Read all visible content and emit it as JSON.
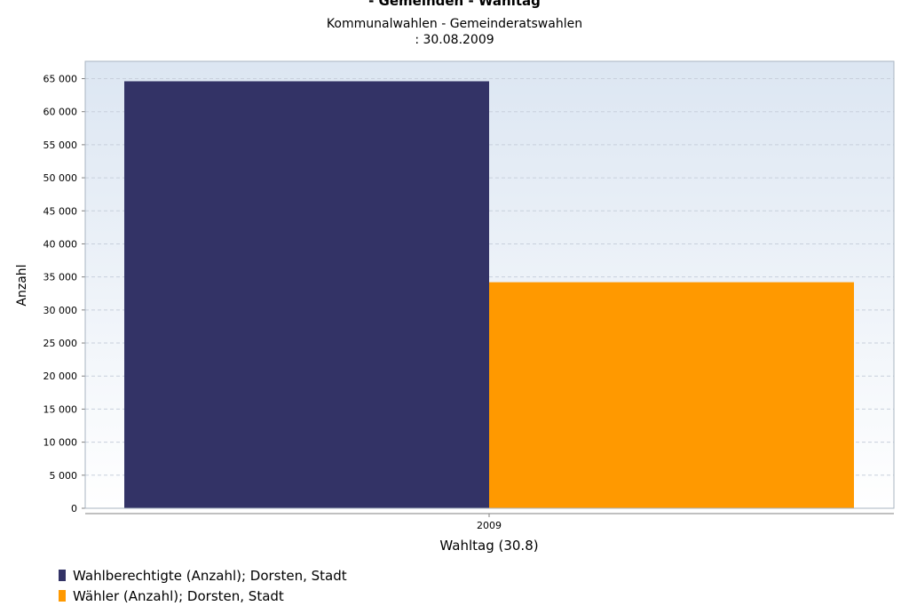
{
  "chart_data": {
    "type": "bar",
    "title": "- Gemeinden - Wahltag",
    "subtitle_lines": [
      "Kommunalwahlen - Gemeinderatswahlen",
      ": 30.08.2009"
    ],
    "xlabel": "Wahltag (30.8)",
    "ylabel": "Anzahl",
    "categories": [
      "2009"
    ],
    "ylim": [
      0,
      67000
    ],
    "yticks": [
      0,
      5000,
      10000,
      15000,
      20000,
      25000,
      30000,
      35000,
      40000,
      45000,
      50000,
      55000,
      60000,
      65000
    ],
    "ytick_labels": [
      "0",
      "5 000",
      "10 000",
      "15 000",
      "20 000",
      "25 000",
      "30 000",
      "35 000",
      "40 000",
      "45 000",
      "50 000",
      "55 000",
      "60 000",
      "65 000"
    ],
    "grid": true,
    "legend_position": "bottom-left",
    "series": [
      {
        "name": "Wahlberechtigte (Anzahl); Dorsten, Stadt",
        "values": [
          64600
        ],
        "color": "#333366"
      },
      {
        "name": "Wähler (Anzahl); Dorsten, Stadt",
        "values": [
          34200
        ],
        "color": "#ff9900"
      }
    ]
  }
}
